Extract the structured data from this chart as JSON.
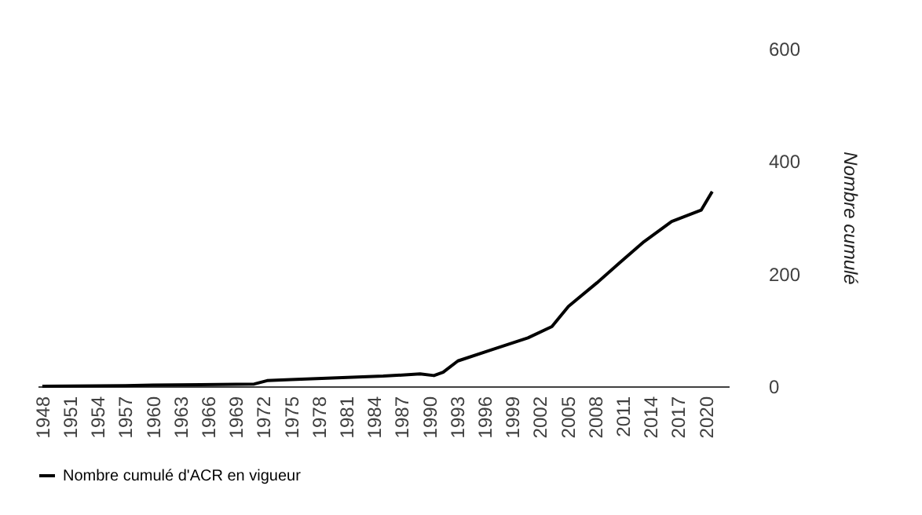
{
  "chart_data": {
    "type": "line",
    "ylabel": "Nombre cumulé",
    "xlim": [
      1947.5,
      2022.5
    ],
    "xticks": [
      1948,
      1951,
      1954,
      1957,
      1960,
      1963,
      1966,
      1969,
      1972,
      1975,
      1978,
      1981,
      1984,
      1987,
      1990,
      1993,
      1996,
      1999,
      2002,
      2005,
      2008,
      2011,
      2014,
      2017,
      2020
    ],
    "ylim": [
      0,
      600
    ],
    "yticks": [
      0,
      200,
      400,
      600
    ],
    "grid": false,
    "legend": "bottom",
    "line_style": "solid",
    "marker": "none",
    "series": [
      {
        "name": "Nombre cumulé d'ACR en vigueur",
        "color": "#000000",
        "x": [
          1948,
          1957,
          1960,
          1971,
          1972.4,
          1975,
          1980,
          1985,
          1989,
          1990.5,
          1991.5,
          1993.1,
          1996.8,
          2000.7,
          2003.3,
          2005.1,
          2008.2,
          2010.7,
          2013.3,
          2016.3,
          2019.5,
          2020.7
        ],
        "values": [
          0,
          1,
          2,
          4,
          10,
          12,
          15,
          18,
          22,
          19,
          25,
          45,
          65,
          86,
          106,
          142,
          184,
          220,
          257,
          293,
          313,
          346
        ]
      }
    ]
  }
}
